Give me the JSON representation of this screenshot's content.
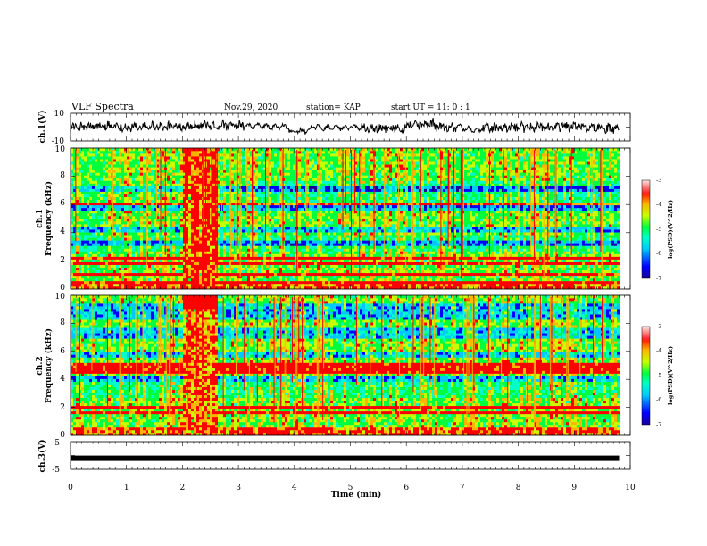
{
  "header": {
    "title": "VLF Spectra",
    "date": "Nov.29, 2020",
    "station": "station= KAP",
    "start_time": "start  UT =   11: 0  : 1"
  },
  "colors": {
    "colormap": [
      "#1a0099",
      "#0000ff",
      "#00c8ff",
      "#00ffc8",
      "#00ff3c",
      "#c8ff00",
      "#ffb400",
      "#ff0000",
      "#ff0000"
    ],
    "trace": "#000000",
    "frame": "#000000"
  },
  "chart_data": [
    {
      "type": "line",
      "panel": "ch1-waveform",
      "ylabel": "ch.1(V)",
      "ylim": [
        -10,
        10
      ],
      "yticks": [
        "10",
        "-10"
      ],
      "x_unit": "min",
      "xlim": [
        0,
        10
      ],
      "data_end": 9.8
    },
    {
      "type": "heatmap",
      "panel": "ch1-spectrogram",
      "ylabel_top": "ch.1",
      "ylabel": "Frequency (kHz)",
      "ylim": [
        0,
        10
      ],
      "yticks": [
        "0",
        "2",
        "4",
        "6",
        "8",
        "10"
      ],
      "xlim": [
        0,
        10
      ],
      "data_end": 9.8,
      "colorbar": {
        "label": "log(PSD)(V^2/Hz)",
        "range": [
          -7,
          -3
        ],
        "ticks": [
          "-3",
          "-4",
          "-5",
          "-6",
          "-7"
        ]
      },
      "features": {
        "strong_noise_interval_min": [
          2.0,
          2.6
        ],
        "low_power_bands_khz": [
          [
            6.9,
            7.4
          ],
          [
            5.6,
            6.1
          ],
          [
            4.0,
            4.4
          ],
          [
            3.0,
            3.4
          ]
        ],
        "high_power_lines_khz": [
          0.5,
          1.0,
          1.8,
          2.2,
          6.0
        ]
      }
    },
    {
      "type": "heatmap",
      "panel": "ch2-spectrogram",
      "ylabel_top": "ch.2",
      "ylabel": "Frequency (kHz)",
      "ylim": [
        0,
        10
      ],
      "yticks": [
        "0",
        "2",
        "4",
        "6",
        "8",
        "10"
      ],
      "xlim": [
        0,
        10
      ],
      "data_end": 9.8,
      "colorbar": {
        "label": "log(PSD)(V^2/Hz)",
        "range": [
          -7,
          -3
        ],
        "ticks": [
          "-3",
          "-4",
          "-5",
          "-6",
          "-7"
        ]
      },
      "features": {
        "strong_noise_interval_min": [
          2.0,
          2.6
        ],
        "low_power_bands_khz": [
          [
            8.4,
            9.3
          ],
          [
            7.0,
            7.6
          ],
          [
            5.5,
            6.0
          ],
          [
            3.8,
            4.2
          ]
        ],
        "high_power_lines_khz": [
          1.7,
          2.0,
          4.6,
          5.0
        ]
      }
    },
    {
      "type": "line",
      "panel": "ch3-waveform",
      "ylabel": "ch.3(V)",
      "ylim": [
        -5,
        5
      ],
      "yticks": [
        "5",
        "-5"
      ],
      "xlim": [
        0,
        10
      ],
      "data_end": 9.8,
      "level": -1.0
    }
  ],
  "xaxis": {
    "label": "Time  (min)",
    "ticks": [
      "0",
      "1",
      "2",
      "3",
      "4",
      "5",
      "6",
      "7",
      "8",
      "9",
      "10"
    ]
  }
}
